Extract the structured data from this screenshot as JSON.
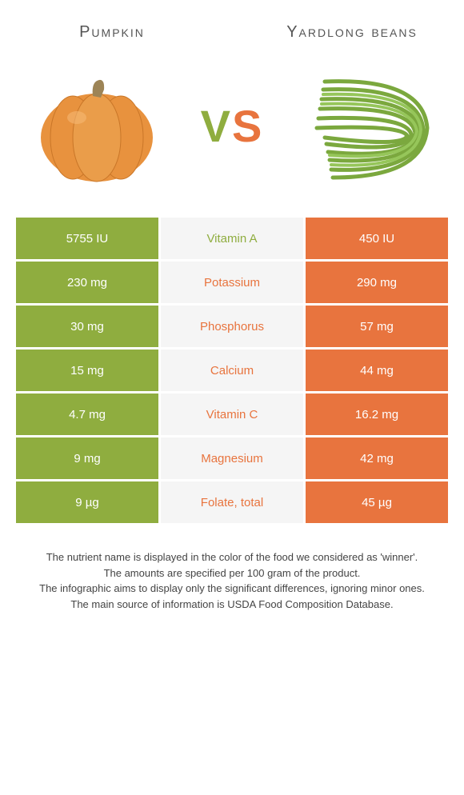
{
  "header": {
    "left_title": "Pumpkin",
    "right_title": "Yardlong beans"
  },
  "vs": {
    "v": "V",
    "s": "S"
  },
  "colors": {
    "green": "#8fad3f",
    "orange": "#e8743e",
    "mid_bg": "#f5f5f5"
  },
  "rows": [
    {
      "left": "5755 IU",
      "nutrient": "Vitamin A",
      "right": "450 IU",
      "winner": "green"
    },
    {
      "left": "230 mg",
      "nutrient": "Potassium",
      "right": "290 mg",
      "winner": "orange"
    },
    {
      "left": "30 mg",
      "nutrient": "Phosphorus",
      "right": "57 mg",
      "winner": "orange"
    },
    {
      "left": "15 mg",
      "nutrient": "Calcium",
      "right": "44 mg",
      "winner": "orange"
    },
    {
      "left": "4.7 mg",
      "nutrient": "Vitamin C",
      "right": "16.2 mg",
      "winner": "orange"
    },
    {
      "left": "9 mg",
      "nutrient": "Magnesium",
      "right": "42 mg",
      "winner": "orange"
    },
    {
      "left": "9 µg",
      "nutrient": "Folate, total",
      "right": "45 µg",
      "winner": "orange"
    }
  ],
  "footer": {
    "line1": "The nutrient name is displayed in the color of the food we considered as 'winner'.",
    "line2": "The amounts are specified per 100 gram of the product.",
    "line3": "The infographic aims to display only the significant differences, ignoring minor ones.",
    "line4": "The main source of information is USDA Food Composition Database."
  }
}
